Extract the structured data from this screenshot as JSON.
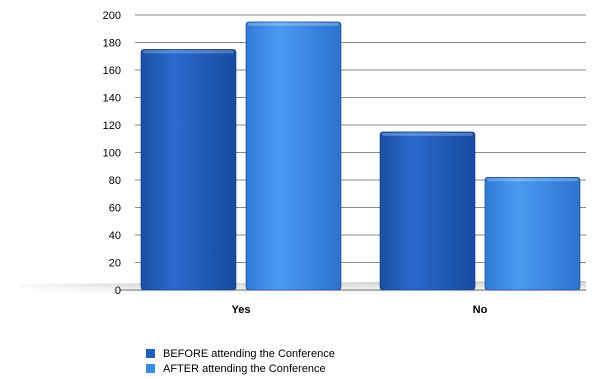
{
  "chart_data": {
    "type": "bar",
    "categories": [
      "Yes",
      "No"
    ],
    "series": [
      {
        "name": "BEFORE attending the Conference",
        "values": [
          175,
          115
        ],
        "color": "#1f5fbf"
      },
      {
        "name": "AFTER attending the Conference",
        "values": [
          195,
          82
        ],
        "color": "#3a8ae6"
      }
    ],
    "title": "",
    "xlabel": "",
    "ylabel": "",
    "ylim": [
      0,
      200
    ],
    "yticks": [
      0,
      20,
      40,
      60,
      80,
      100,
      120,
      140,
      160,
      180,
      200
    ],
    "grid": true,
    "legend_position": "bottom"
  }
}
